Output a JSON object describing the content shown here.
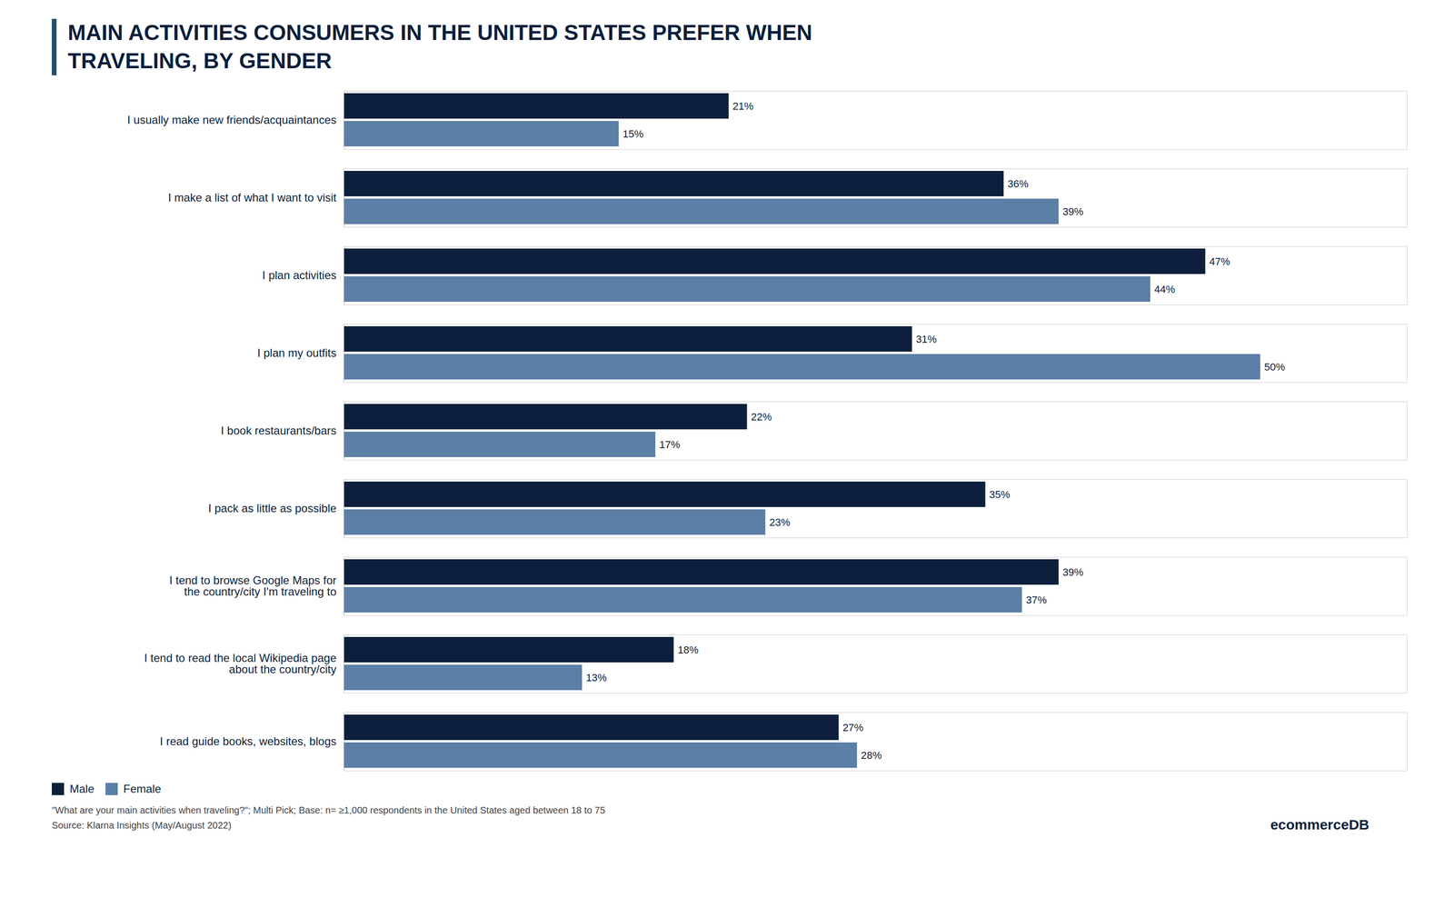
{
  "chart_data": {
    "type": "bar",
    "orientation": "horizontal",
    "title": "MAIN ACTIVITIES CONSUMERS IN THE UNITED STATES PREFER WHEN\nTRAVELING, BY GENDER",
    "categories": [
      "I usually make new friends/acquaintances",
      "I make a list of what I want to visit",
      "I plan activities",
      "I plan my outfits",
      "I book restaurants/bars",
      "I pack as little as possible",
      "I tend to browse Google Maps for\nthe country/city I'm traveling to",
      "I tend to read the local Wikipedia page\nabout the country/city",
      "I read guide books, websites, blogs"
    ],
    "series": [
      {
        "name": "Male",
        "color": "#0d1f3c",
        "values": [
          21,
          36,
          47,
          31,
          22,
          35,
          39,
          18,
          27
        ],
        "value_labels": [
          "21%",
          "36%",
          "47%",
          "31%",
          "22%",
          "35%",
          "39%",
          "18%",
          "27%"
        ]
      },
      {
        "name": "Female",
        "color": "#5b7fa6",
        "values": [
          15,
          39,
          44,
          50,
          17,
          23,
          37,
          13,
          28
        ],
        "value_labels": [
          "15%",
          "39%",
          "44%",
          "50%",
          "17%",
          "23%",
          "37%",
          "13%",
          "28%"
        ]
      }
    ],
    "xlim": [
      0,
      58
    ],
    "data_labels": true,
    "tick_labels": "y",
    "grid": false,
    "legend": "lower left",
    "annotations": [
      "\"What are your main activities when traveling?\"; Multi Pick; Base: n= ≥1,000 respondents in the United States aged between 18 to 75",
      "Source: Klarna Insights (May/August 2022)",
      "ecommerceDB"
    ]
  }
}
